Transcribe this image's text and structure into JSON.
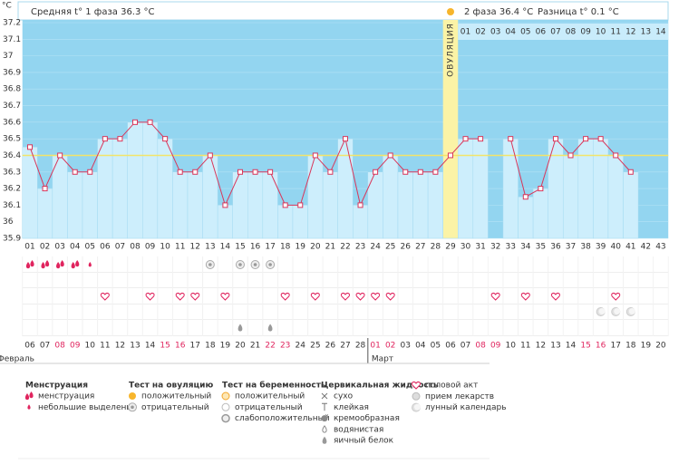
{
  "chart_data": {
    "type": "line",
    "y_unit": "°C",
    "header": {
      "phase1": "Средняя t° 1 фаза 36.3 °C",
      "phase2": "2 фаза 36.4 °C",
      "diff": "Разница t° 0.1 °C"
    },
    "ovulation_label": "ОВУЛЯЦИЯ",
    "ovulation_day": "29",
    "categories": [
      "01",
      "02",
      "03",
      "04",
      "05",
      "06",
      "07",
      "08",
      "09",
      "10",
      "11",
      "12",
      "13",
      "14",
      "15",
      "16",
      "17",
      "18",
      "19",
      "20",
      "21",
      "22",
      "23",
      "24",
      "25",
      "26",
      "27",
      "28",
      "29",
      "30",
      "31",
      "32",
      "33",
      "34",
      "35",
      "36",
      "37",
      "38",
      "39",
      "40",
      "41",
      "42",
      "43"
    ],
    "phase2_days": [
      "01",
      "02",
      "03",
      "04",
      "05",
      "06",
      "07",
      "08",
      "09",
      "10",
      "11",
      "12",
      "13",
      "14"
    ],
    "values": [
      36.45,
      36.2,
      36.4,
      36.3,
      36.3,
      36.5,
      36.5,
      36.6,
      36.6,
      36.5,
      36.3,
      36.3,
      36.4,
      36.1,
      36.3,
      36.3,
      36.3,
      36.1,
      36.1,
      36.4,
      36.3,
      36.5,
      36.1,
      36.3,
      36.4,
      36.3,
      36.3,
      36.3,
      36.4,
      36.5,
      36.5,
      null,
      36.5,
      36.15,
      36.2,
      36.5,
      36.4,
      36.5,
      36.5,
      36.4,
      36.3,
      null,
      null
    ],
    "color": "#d9365a",
    "coverline": 36.4,
    "coverline_color": "#f3e46a",
    "ylim": [
      35.9,
      37.2
    ],
    "yticks": [
      35.9,
      36,
      36.1,
      36.2,
      36.3,
      36.4,
      36.5,
      36.6,
      36.7,
      36.8,
      36.9,
      37,
      37.1,
      37.2
    ],
    "grid": true,
    "dates": [
      "06",
      "07",
      "08",
      "09",
      "10",
      "11",
      "12",
      "13",
      "14",
      "15",
      "16",
      "17",
      "18",
      "19",
      "20",
      "21",
      "22",
      "23",
      "24",
      "25",
      "26",
      "27",
      "28",
      "01",
      "02",
      "03",
      "04",
      "05",
      "06",
      "07",
      "08",
      "09",
      "10",
      "11",
      "12",
      "13",
      "14",
      "15",
      "16",
      "17",
      "18",
      "19",
      "20"
    ],
    "date_colors": [
      "#333",
      "#333",
      "#e0245e",
      "#e0245e",
      "#333",
      "#333",
      "#333",
      "#333",
      "#333",
      "#e0245e",
      "#e0245e",
      "#333",
      "#333",
      "#333",
      "#333",
      "#333",
      "#e0245e",
      "#e0245e",
      "#333",
      "#333",
      "#333",
      "#333",
      "#333",
      "#e0245e",
      "#e0245e",
      "#333",
      "#333",
      "#333",
      "#333",
      "#333",
      "#e0245e",
      "#e0245e",
      "#333",
      "#333",
      "#333",
      "#333",
      "#333",
      "#e0245e",
      "#e0245e",
      "#333",
      "#333",
      "#333",
      "#333"
    ],
    "months": [
      "Февраль",
      "Март"
    ],
    "events": [
      {
        "type": "menstruation",
        "days": [
          "01",
          "02",
          "03",
          "04"
        ]
      },
      {
        "type": "spotting",
        "days": [
          "05"
        ]
      },
      {
        "type": "ovulation_negative",
        "days": [
          "13",
          "15",
          "16",
          "17"
        ]
      },
      {
        "type": "intercourse",
        "days": [
          "06",
          "09",
          "11",
          "12",
          "14",
          "18",
          "20",
          "22",
          "23",
          "24",
          "25",
          "32",
          "34",
          "36",
          "40"
        ]
      },
      {
        "type": "lunar",
        "days": [
          "39",
          "40",
          "41"
        ]
      },
      {
        "type": "egg_white",
        "days": [
          "15",
          "17"
        ]
      }
    ],
    "legend": [
      {
        "title": "Менструация",
        "items": [
          "менструация",
          "небольшие выделения"
        ]
      },
      {
        "title": "Тест на овуляцию",
        "items": [
          "положительный",
          "отрицательный"
        ]
      },
      {
        "title": "Тест на беременность",
        "items": [
          "положительный",
          "отрицательный",
          "слабоположительный"
        ]
      },
      {
        "title": "Цервикальная жидкость",
        "items": [
          "сухо",
          "клейкая",
          "кремообразная",
          "водянистая",
          "яичный белок"
        ]
      },
      {
        "items": [
          "половой акт",
          "прием лекарств",
          "лунный календарь"
        ]
      }
    ]
  }
}
